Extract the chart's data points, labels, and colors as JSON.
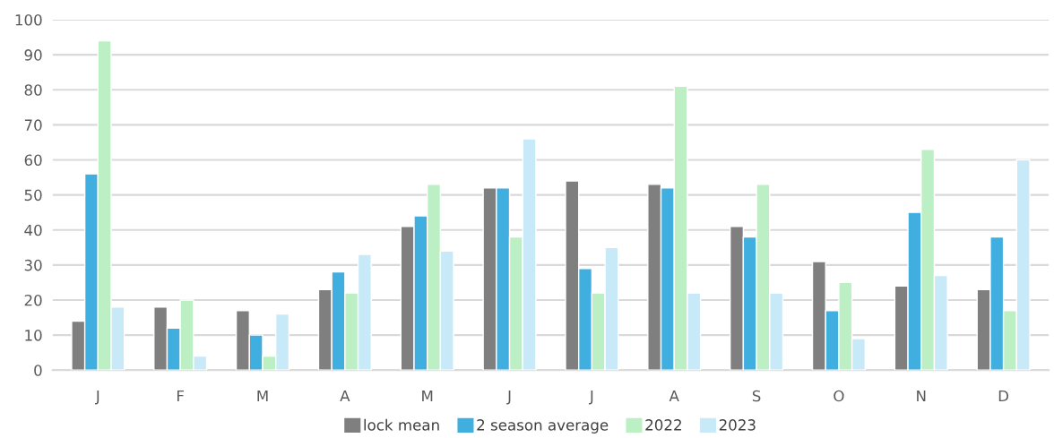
{
  "chart_data": {
    "type": "bar",
    "categories": [
      "J",
      "F",
      "M",
      "A",
      "M",
      "J",
      "J",
      "A",
      "S",
      "O",
      "N",
      "D"
    ],
    "series": [
      {
        "name": "lock mean",
        "color": "#7f7f7f",
        "values": [
          14,
          18,
          17,
          23,
          41,
          52,
          54,
          53,
          41,
          31,
          24,
          23
        ]
      },
      {
        "name": "2 season average",
        "color": "#41aee0",
        "values": [
          56,
          12,
          10,
          28,
          44,
          52,
          29,
          52,
          38,
          17,
          45,
          38
        ]
      },
      {
        "name": "2022",
        "color": "#bdefc4",
        "values": [
          94,
          20,
          4,
          22,
          53,
          38,
          22,
          81,
          53,
          25,
          63,
          17
        ]
      },
      {
        "name": "2023",
        "color": "#c8e9f8",
        "values": [
          18,
          4,
          16,
          33,
          34,
          66,
          35,
          22,
          22,
          9,
          27,
          60
        ]
      }
    ],
    "ylim": [
      0,
      100
    ],
    "yticks": [
      0,
      10,
      20,
      30,
      40,
      50,
      60,
      70,
      80,
      90,
      100
    ],
    "grid": "y",
    "legend": "bottom"
  }
}
